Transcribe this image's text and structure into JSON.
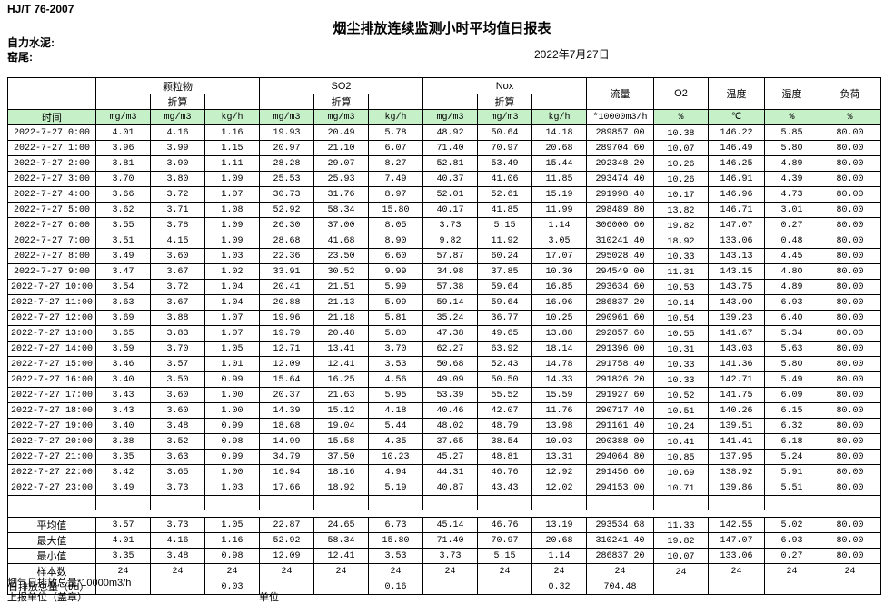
{
  "meta": {
    "standard": "HJ/T  76-2007",
    "title": "烟尘排放连续监测小时平均值日报表",
    "company": "自力水泥:",
    "kiln": "窑尾:",
    "date": "2022年7月27日"
  },
  "table": {
    "header": {
      "time": "时间",
      "groups": [
        {
          "label": "颗粒物"
        },
        {
          "label": "SO2"
        },
        {
          "label": "Nox"
        }
      ],
      "converted": "折算",
      "flow": "流量",
      "o2": "O2",
      "temperature": "温度",
      "humidity": "湿度",
      "load": "负荷",
      "units": {
        "mg": "mg/m3",
        "kgh": "kg/h",
        "flow": "*10000m3/h",
        "percent": "%",
        "celsius": "℃"
      }
    },
    "rows": [
      [
        "2022-7-27 0:00",
        "4.01",
        "4.16",
        "1.16",
        "19.93",
        "20.49",
        "5.78",
        "48.92",
        "50.64",
        "14.18",
        "289857.00",
        "10.38",
        "146.22",
        "5.85",
        "80.00"
      ],
      [
        "2022-7-27 1:00",
        "3.96",
        "3.99",
        "1.15",
        "20.97",
        "21.10",
        "6.07",
        "71.40",
        "70.97",
        "20.68",
        "289704.60",
        "10.07",
        "146.49",
        "5.80",
        "80.00"
      ],
      [
        "2022-7-27 2:00",
        "3.81",
        "3.90",
        "1.11",
        "28.28",
        "29.07",
        "8.27",
        "52.81",
        "53.49",
        "15.44",
        "292348.20",
        "10.26",
        "146.25",
        "4.89",
        "80.00"
      ],
      [
        "2022-7-27 3:00",
        "3.70",
        "3.80",
        "1.09",
        "25.53",
        "25.93",
        "7.49",
        "40.37",
        "41.06",
        "11.85",
        "293474.40",
        "10.26",
        "146.91",
        "4.39",
        "80.00"
      ],
      [
        "2022-7-27 4:00",
        "3.66",
        "3.72",
        "1.07",
        "30.73",
        "31.76",
        "8.97",
        "52.01",
        "52.61",
        "15.19",
        "291998.40",
        "10.17",
        "146.96",
        "4.73",
        "80.00"
      ],
      [
        "2022-7-27 5:00",
        "3.62",
        "3.71",
        "1.08",
        "52.92",
        "58.34",
        "15.80",
        "40.17",
        "41.85",
        "11.99",
        "298489.80",
        "13.82",
        "146.71",
        "3.01",
        "80.00"
      ],
      [
        "2022-7-27 6:00",
        "3.55",
        "3.78",
        "1.09",
        "26.30",
        "37.00",
        "8.05",
        "3.73",
        "5.15",
        "1.14",
        "306000.60",
        "19.82",
        "147.07",
        "0.27",
        "80.00"
      ],
      [
        "2022-7-27 7:00",
        "3.51",
        "4.15",
        "1.09",
        "28.68",
        "41.68",
        "8.90",
        "9.82",
        "11.92",
        "3.05",
        "310241.40",
        "18.92",
        "133.06",
        "0.48",
        "80.00"
      ],
      [
        "2022-7-27 8:00",
        "3.49",
        "3.60",
        "1.03",
        "22.36",
        "23.50",
        "6.60",
        "57.87",
        "60.24",
        "17.07",
        "295028.40",
        "10.33",
        "143.13",
        "4.45",
        "80.00"
      ],
      [
        "2022-7-27 9:00",
        "3.47",
        "3.67",
        "1.02",
        "33.91",
        "30.52",
        "9.99",
        "34.98",
        "37.85",
        "10.30",
        "294549.00",
        "11.31",
        "143.15",
        "4.80",
        "80.00"
      ],
      [
        "2022-7-27 10:00",
        "3.54",
        "3.72",
        "1.04",
        "20.41",
        "21.51",
        "5.99",
        "57.38",
        "59.64",
        "16.85",
        "293634.60",
        "10.53",
        "143.75",
        "4.89",
        "80.00"
      ],
      [
        "2022-7-27 11:00",
        "3.63",
        "3.67",
        "1.04",
        "20.88",
        "21.13",
        "5.99",
        "59.14",
        "59.64",
        "16.96",
        "286837.20",
        "10.14",
        "143.90",
        "6.93",
        "80.00"
      ],
      [
        "2022-7-27 12:00",
        "3.69",
        "3.88",
        "1.07",
        "19.96",
        "21.18",
        "5.81",
        "35.24",
        "36.77",
        "10.25",
        "290961.60",
        "10.54",
        "139.23",
        "6.40",
        "80.00"
      ],
      [
        "2022-7-27 13:00",
        "3.65",
        "3.83",
        "1.07",
        "19.79",
        "20.48",
        "5.80",
        "47.38",
        "49.65",
        "13.88",
        "292857.60",
        "10.55",
        "141.67",
        "5.34",
        "80.00"
      ],
      [
        "2022-7-27 14:00",
        "3.59",
        "3.70",
        "1.05",
        "12.71",
        "13.41",
        "3.70",
        "62.27",
        "63.92",
        "18.14",
        "291396.00",
        "10.31",
        "143.03",
        "5.63",
        "80.00"
      ],
      [
        "2022-7-27 15:00",
        "3.46",
        "3.57",
        "1.01",
        "12.09",
        "12.41",
        "3.53",
        "50.68",
        "52.43",
        "14.78",
        "291758.40",
        "10.33",
        "141.36",
        "5.80",
        "80.00"
      ],
      [
        "2022-7-27 16:00",
        "3.40",
        "3.50",
        "0.99",
        "15.64",
        "16.25",
        "4.56",
        "49.09",
        "50.50",
        "14.33",
        "291826.20",
        "10.33",
        "142.71",
        "5.49",
        "80.00"
      ],
      [
        "2022-7-27 17:00",
        "3.43",
        "3.60",
        "1.00",
        "20.37",
        "21.63",
        "5.95",
        "53.39",
        "55.52",
        "15.59",
        "291927.60",
        "10.52",
        "141.75",
        "6.09",
        "80.00"
      ],
      [
        "2022-7-27 18:00",
        "3.43",
        "3.60",
        "1.00",
        "14.39",
        "15.12",
        "4.18",
        "40.46",
        "42.07",
        "11.76",
        "290717.40",
        "10.51",
        "140.26",
        "6.15",
        "80.00"
      ],
      [
        "2022-7-27 19:00",
        "3.40",
        "3.48",
        "0.99",
        "18.68",
        "19.04",
        "5.44",
        "48.02",
        "48.79",
        "13.98",
        "291161.40",
        "10.24",
        "139.51",
        "6.32",
        "80.00"
      ],
      [
        "2022-7-27 20:00",
        "3.38",
        "3.52",
        "0.98",
        "14.99",
        "15.58",
        "4.35",
        "37.65",
        "38.54",
        "10.93",
        "290388.00",
        "10.41",
        "141.41",
        "6.18",
        "80.00"
      ],
      [
        "2022-7-27 21:00",
        "3.35",
        "3.63",
        "0.99",
        "34.79",
        "37.50",
        "10.23",
        "45.27",
        "48.81",
        "13.31",
        "294064.80",
        "10.85",
        "137.95",
        "5.24",
        "80.00"
      ],
      [
        "2022-7-27 22:00",
        "3.42",
        "3.65",
        "1.00",
        "16.94",
        "18.16",
        "4.94",
        "44.31",
        "46.76",
        "12.92",
        "291456.60",
        "10.69",
        "138.92",
        "5.91",
        "80.00"
      ],
      [
        "2022-7-27 23:00",
        "3.49",
        "3.73",
        "1.03",
        "17.66",
        "18.92",
        "5.19",
        "40.87",
        "43.43",
        "12.02",
        "294153.00",
        "10.71",
        "139.86",
        "5.51",
        "80.00"
      ]
    ],
    "summary": [
      {
        "label": "平均值",
        "align": "center",
        "values": [
          "3.57",
          "3.73",
          "1.05",
          "22.87",
          "24.65",
          "6.73",
          "45.14",
          "46.76",
          "13.19",
          "293534.68",
          "11.33",
          "142.55",
          "5.02",
          "80.00"
        ]
      },
      {
        "label": "最大值",
        "align": "center",
        "values": [
          "4.01",
          "4.16",
          "1.16",
          "52.92",
          "58.34",
          "15.80",
          "71.40",
          "70.97",
          "20.68",
          "310241.40",
          "19.82",
          "147.07",
          "6.93",
          "80.00"
        ]
      },
      {
        "label": "最小值",
        "align": "center",
        "values": [
          "3.35",
          "3.48",
          "0.98",
          "12.09",
          "12.41",
          "3.53",
          "3.73",
          "5.15",
          "1.14",
          "286837.20",
          "10.07",
          "133.06",
          "0.27",
          "80.00"
        ]
      },
      {
        "label": "样本数",
        "align": "center",
        "values": [
          "24",
          "24",
          "24",
          "24",
          "24",
          "24",
          "24",
          "24",
          "24",
          "24",
          "24",
          "24",
          "24",
          "24"
        ]
      },
      {
        "label": "日排放总量（t/d）",
        "align": "left",
        "values": [
          "",
          "",
          "0.03",
          "",
          "",
          "0.16",
          "",
          "",
          "0.32",
          "704.48",
          "",
          "",
          "",
          ""
        ]
      }
    ]
  },
  "footer": {
    "line1": "烟气日排放总量*10000m3/h",
    "line2_left": "上报单位（盖章）",
    "line2_right": "单位"
  },
  "colors": {
    "header_green": "#c6f0c8"
  }
}
